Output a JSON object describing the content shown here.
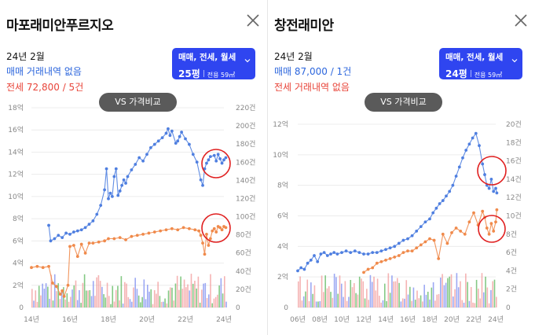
{
  "panels": [
    {
      "title": "마포래미안푸르지오",
      "date": "24년 2월",
      "sale_text": "매매 거래내역 없음",
      "jeonse_text": "전세 72,800 / 5건",
      "filter": {
        "type": "매매, 전세, 월세",
        "pyeong": "25평",
        "area": "전용 59㎡"
      },
      "vs_label": "VS 가격비교",
      "icons": {
        "close": "close-icon",
        "chevron": "chevron-down-icon"
      }
    },
    {
      "title": "창전래미안",
      "date": "24년 2월",
      "sale_text": "매매 87,000 / 1건",
      "jeonse_text": "전세 거래내역 없음",
      "filter": {
        "type": "매매, 전세, 월세",
        "pyeong": "24평",
        "area": "전용 59㎡"
      },
      "vs_label": "VS 가격비교",
      "icons": {
        "close": "close-icon",
        "chevron": "chevron-down-icon"
      }
    }
  ],
  "colors": {
    "sale": "#4f7fe0",
    "jeonse": "#f08a4b",
    "accent": "#2f45f0",
    "highlight": "#e02020",
    "vol_sale": "#7b8cf0",
    "vol_green": "#5cb85c",
    "vol_red": "#f29a9a"
  },
  "chart_data": [
    {
      "type": "line",
      "x_ticks": [
        "14년",
        "16년",
        "18년",
        "20년",
        "22년",
        "24년"
      ],
      "x_range": [
        2014,
        2024
      ],
      "y_left_ticks": [
        "0",
        "2억",
        "4억",
        "6억",
        "8억",
        "10억",
        "12억",
        "14억",
        "16억",
        "18억"
      ],
      "y_left_range": [
        0,
        18
      ],
      "y_right_ticks": [
        "0",
        "20건",
        "40건",
        "60건",
        "80건",
        "100건",
        "120건",
        "140건",
        "160건",
        "180건",
        "200건",
        "220건"
      ],
      "y_right_range": [
        0,
        220
      ],
      "grid": true,
      "series": [
        {
          "name": "매매",
          "x": [
            2014.9,
            2015.0,
            2015.2,
            2015.4,
            2015.6,
            2015.8,
            2016.0,
            2016.2,
            2016.4,
            2016.6,
            2016.8,
            2017.0,
            2017.2,
            2017.4,
            2017.6,
            2017.8,
            2017.9,
            2018.0,
            2018.1,
            2018.2,
            2018.3,
            2018.4,
            2018.5,
            2018.6,
            2018.7,
            2018.8,
            2018.9,
            2019.0,
            2019.2,
            2019.4,
            2019.6,
            2019.8,
            2020.0,
            2020.2,
            2020.4,
            2020.6,
            2020.8,
            2021.0,
            2021.1,
            2021.2,
            2021.3,
            2021.5,
            2021.6,
            2021.7,
            2021.8,
            2022.0,
            2022.2,
            2022.4,
            2022.6,
            2022.8,
            2022.9,
            2023.0,
            2023.1,
            2023.2,
            2023.3,
            2023.5,
            2023.6,
            2023.7,
            2023.8,
            2023.9,
            2024.0,
            2024.1
          ],
          "y": [
            7.4,
            6.0,
            6.2,
            6.5,
            6.3,
            6.7,
            6.6,
            6.8,
            6.9,
            7.0,
            7.2,
            7.5,
            7.8,
            8.4,
            9.2,
            10.6,
            12.5,
            9.8,
            10.3,
            10.0,
            11.8,
            12.5,
            10.1,
            10.5,
            11.0,
            11.5,
            11.2,
            11.8,
            12.4,
            12.9,
            13.5,
            13.2,
            13.8,
            14.4,
            14.7,
            15.0,
            15.3,
            15.7,
            16.1,
            15.5,
            15.9,
            14.8,
            15.0,
            15.4,
            15.8,
            15.2,
            14.7,
            13.8,
            13.1,
            11.5,
            11.0,
            12.5,
            13.0,
            13.3,
            13.6,
            13.7,
            13.2,
            13.8,
            13.4,
            13.0,
            13.3,
            13.5
          ]
        },
        {
          "name": "전세",
          "x": [
            2014.0,
            2014.3,
            2014.6,
            2014.9,
            2015.1,
            2015.3,
            2015.5,
            2015.6,
            2015.7,
            2015.9,
            2016.0,
            2016.2,
            2016.4,
            2016.6,
            2016.8,
            2017.0,
            2017.2,
            2017.5,
            2017.8,
            2018.0,
            2018.3,
            2018.6,
            2018.9,
            2019.2,
            2019.5,
            2019.8,
            2020.1,
            2020.4,
            2020.7,
            2021.0,
            2021.3,
            2021.6,
            2021.9,
            2022.2,
            2022.5,
            2022.7,
            2022.8,
            2022.9,
            2023.0,
            2023.1,
            2023.2,
            2023.3,
            2023.4,
            2023.5,
            2023.6,
            2023.7,
            2023.8,
            2023.9,
            2024.0,
            2024.1
          ],
          "y": [
            3.6,
            3.7,
            3.6,
            3.7,
            2.2,
            1.9,
            1.2,
            1.5,
            1.0,
            2.0,
            5.5,
            5.6,
            4.6,
            5.7,
            4.9,
            5.8,
            5.8,
            5.9,
            6.0,
            6.2,
            6.2,
            6.3,
            6.1,
            6.4,
            6.5,
            6.6,
            6.7,
            6.8,
            6.9,
            7.0,
            7.1,
            7.0,
            7.2,
            7.1,
            7.0,
            6.9,
            6.5,
            5.8,
            4.8,
            6.6,
            5.6,
            6.2,
            6.9,
            7.1,
            6.8,
            7.3,
            7.2,
            7.0,
            7.3,
            7.2
          ]
        }
      ]
    },
    {
      "type": "line",
      "x_ticks": [
        "06년",
        "08년",
        "10년",
        "12년",
        "14년",
        "16년",
        "18년",
        "20년",
        "22년",
        "24년"
      ],
      "x_range": [
        2006,
        2024
      ],
      "y_left_ticks": [
        "0",
        "2억",
        "4억",
        "6억",
        "8억",
        "10억",
        "12억"
      ],
      "y_left_range": [
        0,
        12
      ],
      "y_right_ticks": [
        "0",
        "2건",
        "4건",
        "6건",
        "8건",
        "10건",
        "12건",
        "14건",
        "16건",
        "18건",
        "20건"
      ],
      "y_right_range": [
        0,
        20
      ],
      "grid": true,
      "series": [
        {
          "name": "매매",
          "x": [
            2006.0,
            2006.3,
            2006.6,
            2006.9,
            2007.2,
            2007.5,
            2007.8,
            2008.1,
            2008.4,
            2008.7,
            2009.0,
            2009.3,
            2009.6,
            2010.0,
            2010.4,
            2010.8,
            2011.2,
            2011.6,
            2012.0,
            2012.4,
            2012.8,
            2013.2,
            2013.6,
            2014.0,
            2014.4,
            2014.8,
            2015.2,
            2015.6,
            2016.0,
            2016.4,
            2016.8,
            2017.2,
            2017.6,
            2018.0,
            2018.3,
            2018.6,
            2018.9,
            2019.2,
            2019.5,
            2019.8,
            2020.1,
            2020.4,
            2020.7,
            2021.0,
            2021.3,
            2021.6,
            2021.9,
            2022.2,
            2022.5,
            2022.8,
            2023.0,
            2023.2,
            2023.4,
            2023.6,
            2023.8,
            2024.0,
            2024.1
          ],
          "y": [
            2.4,
            2.6,
            2.5,
            2.9,
            3.1,
            3.4,
            3.0,
            3.5,
            3.6,
            3.4,
            3.5,
            3.6,
            3.5,
            3.6,
            3.7,
            3.6,
            3.7,
            3.6,
            3.5,
            3.5,
            3.6,
            3.6,
            3.7,
            3.8,
            3.9,
            4.0,
            4.2,
            4.4,
            4.5,
            4.7,
            5.0,
            5.3,
            5.6,
            5.8,
            6.2,
            6.5,
            6.8,
            7.0,
            7.3,
            7.6,
            8.0,
            8.6,
            9.2,
            9.8,
            10.3,
            10.7,
            11.1,
            11.4,
            10.6,
            9.4,
            8.7,
            8.0,
            7.8,
            8.4,
            7.6,
            7.8,
            7.5
          ]
        },
        {
          "name": "전세",
          "x": [
            2012.0,
            2012.4,
            2012.8,
            2013.2,
            2013.6,
            2014.0,
            2014.4,
            2014.8,
            2015.2,
            2015.6,
            2016.0,
            2016.4,
            2016.8,
            2017.2,
            2017.6,
            2018.0,
            2018.4,
            2018.8,
            2019.2,
            2019.6,
            2020.0,
            2020.4,
            2020.8,
            2021.2,
            2021.6,
            2022.0,
            2022.4,
            2022.8,
            2023.0,
            2023.2,
            2023.4,
            2023.6,
            2023.8,
            2024.0,
            2024.1
          ],
          "y": [
            2.3,
            2.5,
            2.6,
            2.9,
            3.0,
            3.1,
            3.2,
            3.3,
            3.4,
            3.6,
            3.7,
            3.7,
            3.9,
            4.1,
            4.3,
            4.5,
            4.4,
            3.2,
            4.8,
            4.2,
            4.9,
            5.2,
            5.0,
            4.8,
            5.6,
            6.2,
            5.4,
            6.3,
            5.9,
            5.2,
            4.8,
            5.5,
            5.0,
            5.6,
            6.4
          ]
        }
      ]
    }
  ]
}
